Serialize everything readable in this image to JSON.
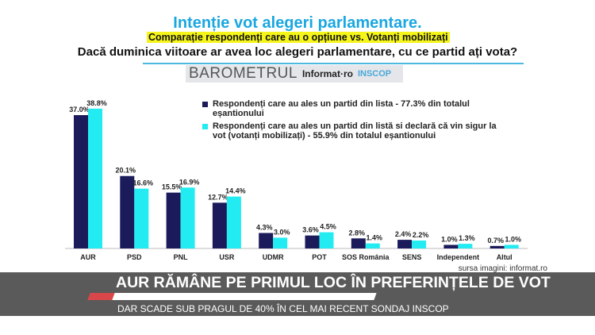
{
  "header": {
    "title": "Intenție vot alegeri parlamentare.",
    "subtitle": "Comparație respondenți care au o opțiune vs. Votanți mobilizați",
    "question": "Dacă duminica viitoare ar avea loc alegeri parlamentare, cu ce partid ați vota?",
    "logo_text": [
      "BAROMETRUL",
      "Informat·ro",
      "INSCOP"
    ]
  },
  "chart_data": {
    "type": "bar",
    "title": "Intenție vot alegeri parlamentare.",
    "categories": [
      "AUR",
      "PSD",
      "PNL",
      "USR",
      "UDMR",
      "POT",
      "SOS România",
      "SENS",
      "Independent",
      "Altul"
    ],
    "series": [
      {
        "name": "Respondenți care au ales un partid din lista - 77.3% din totalul eșantionului",
        "color": "#1b1a5a",
        "values": [
          37.0,
          20.1,
          15.5,
          12.7,
          4.3,
          3.6,
          2.8,
          2.4,
          1.0,
          0.7
        ]
      },
      {
        "name": "Respondenți care au ales un partid din listă si declară că vin sigur la vot (votanți mobilizați) - 55.9% din totalul eșantionului",
        "color": "#22ecf2",
        "values": [
          38.8,
          16.6,
          16.9,
          14.4,
          3.0,
          4.5,
          1.4,
          2.2,
          1.3,
          1.0
        ]
      }
    ],
    "ylim": [
      0,
      40
    ],
    "legend": "top-right"
  },
  "source": "sursa imagini: informat.ro",
  "banner": {
    "headline": "AUR RĂMÂNE PE PRIMUL LOC ÎN PREFERINȚELE DE VOT",
    "subheadline": "DAR SCADE SUB PRAGUL DE 40% ÎN CEL MAI RECENT SONDAJ INSCOP",
    "accent": "#d9474a"
  }
}
